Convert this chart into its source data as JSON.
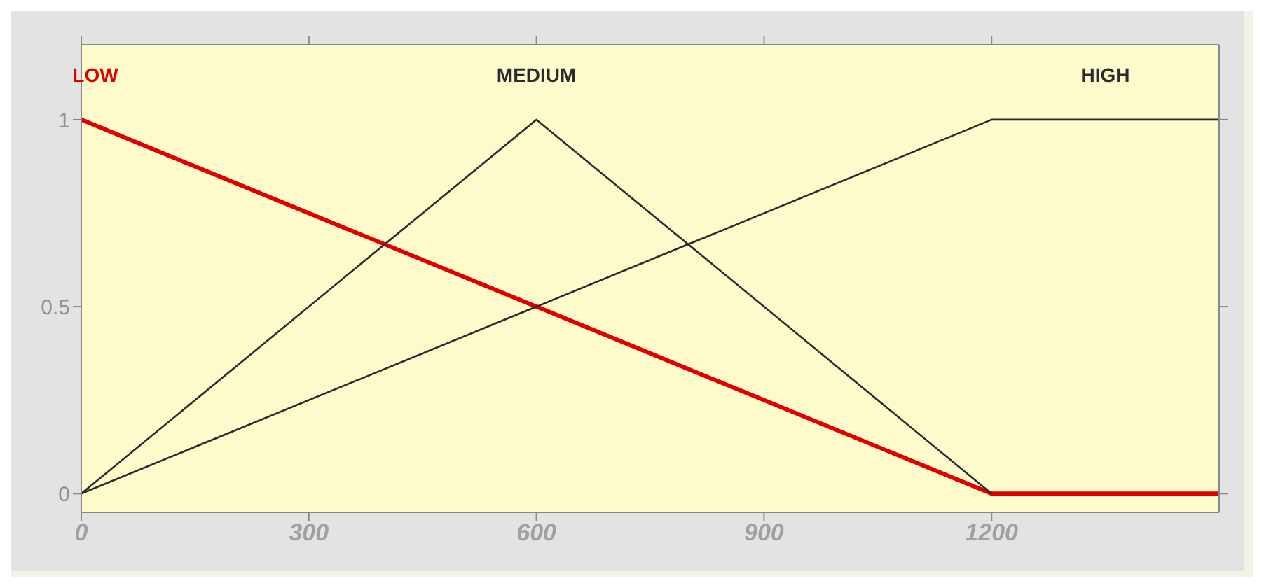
{
  "chart_data": {
    "type": "line",
    "xlim": [
      0,
      1500
    ],
    "ylim": [
      -0.05,
      1.2
    ],
    "xticks": [
      0,
      300,
      600,
      900,
      1200
    ],
    "yticks": [
      0,
      0.5,
      1
    ],
    "grid": false,
    "marker": "none",
    "line_style": "solid",
    "series": [
      {
        "name": "LOW",
        "color": "#e00000",
        "x": [
          0,
          1200,
          1500
        ],
        "values": [
          1,
          0,
          0
        ]
      },
      {
        "name": "MEDIUM",
        "color": "#2b2b2b",
        "x": [
          0,
          600,
          1200
        ],
        "values": [
          0,
          1,
          0
        ]
      },
      {
        "name": "HIGH",
        "color": "#2b2b2b",
        "x": [
          0,
          1200,
          1500
        ],
        "values": [
          0,
          1,
          1
        ]
      }
    ]
  }
}
